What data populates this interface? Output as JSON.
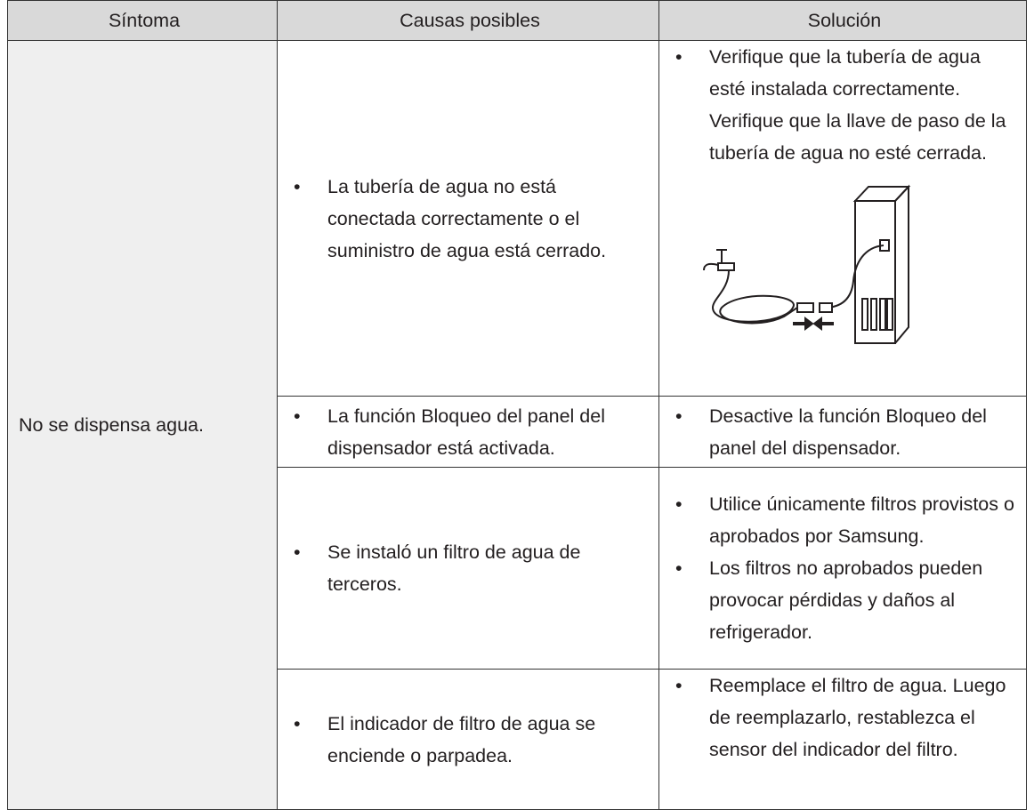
{
  "table": {
    "header": [
      "Síntoma",
      "Causas posibles",
      "Solución"
    ],
    "symptom": "No se dispensa agua.",
    "rows": [
      {
        "causes": [
          "La tubería de agua no está conectada correctamente o el suministro de agua está cerrado."
        ],
        "solutions": [
          "Verifique que la tubería de agua esté instalada correctamente. Verifique que la llave de paso de la tubería de agua no esté cerrada."
        ]
      },
      {
        "causes": [
          "La función Bloqueo del panel del dispensador está activada."
        ],
        "solutions": [
          "Desactive la función Bloqueo del panel del dispensador."
        ]
      },
      {
        "causes": [
          "Se instaló un filtro de agua de terceros."
        ],
        "solutions": [
          "Utilice únicamente filtros provistos o aprobados por Samsung.",
          "Los filtros no aprobados pueden provocar pérdidas y daños al refrigerador."
        ]
      },
      {
        "causes": [
          "El indicador de filtro de agua se enciende o parpadea."
        ],
        "solutions": [
          "Reemplace el filtro de agua. Luego de reemplazarlo, restablezca el sensor del indicador del filtro."
        ]
      }
    ]
  }
}
